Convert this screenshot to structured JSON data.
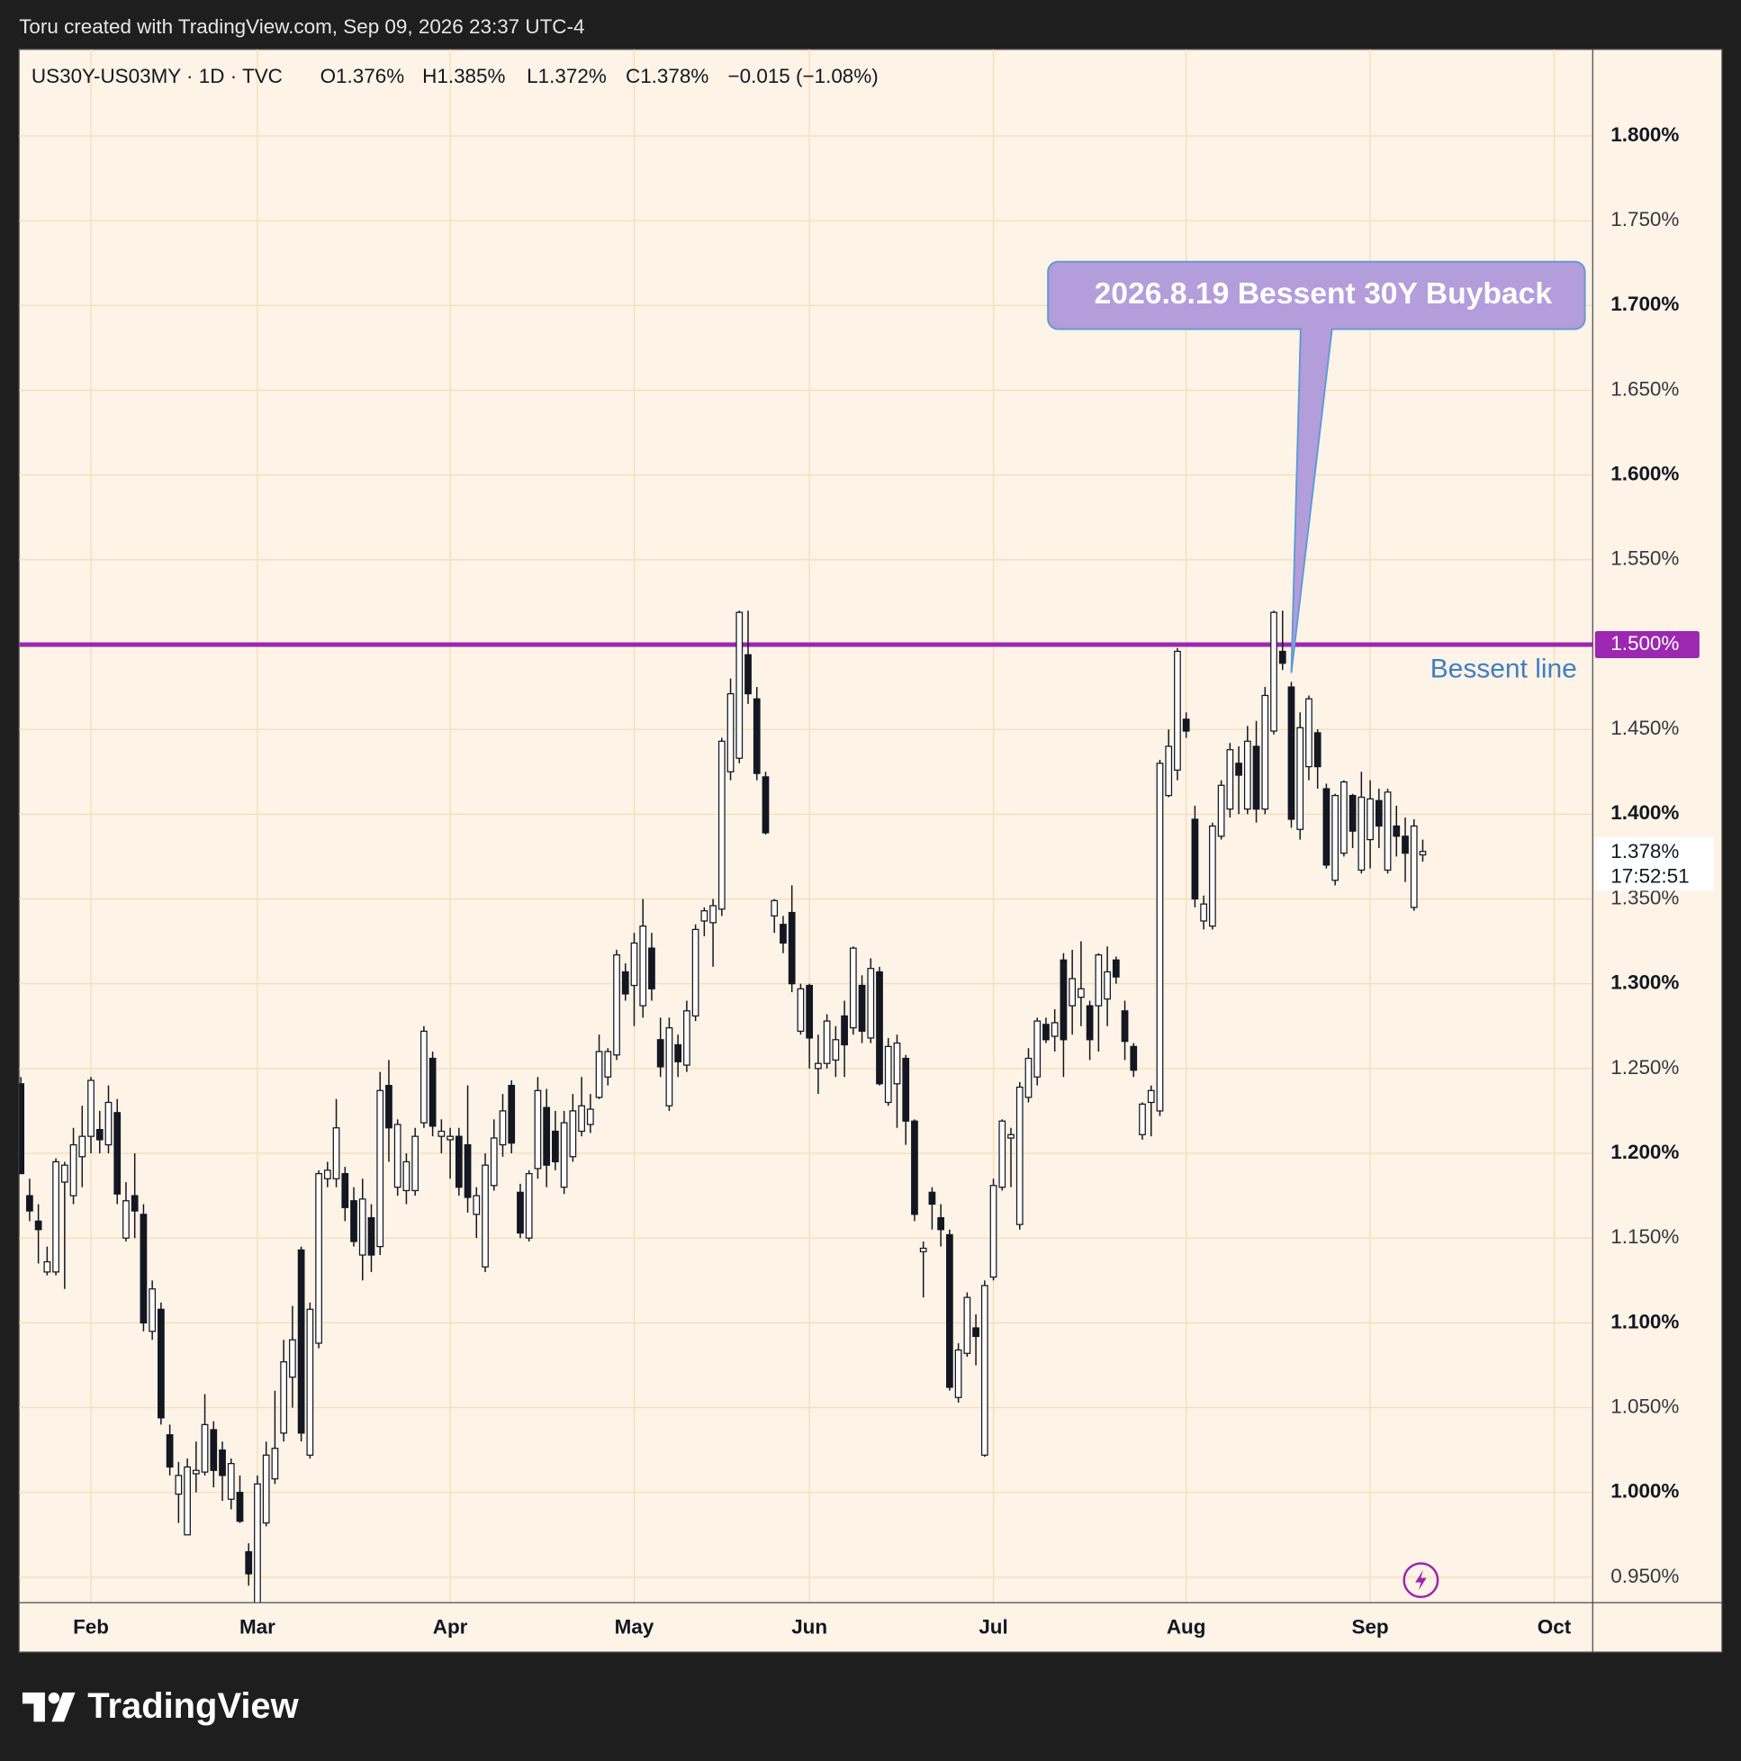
{
  "header": {
    "credit": "Toru created with TradingView.com, Sep 09, 2026 23:37 UTC-4"
  },
  "footer": {
    "brand": "TradingView"
  },
  "chart_data": {
    "type": "candlestick",
    "title": "US30Y-US03MY · 1D · TVC",
    "legend_values": [
      "O1.376%",
      "H1.385%",
      "L1.372%",
      "C1.378%",
      "−0.015 (−1.08%)"
    ],
    "open": [
      1.241,
      1.175,
      1.16,
      1.13,
      1.13,
      1.183,
      1.175,
      1.198,
      1.21,
      1.214,
      1.205,
      1.224,
      1.15,
      1.175,
      1.164,
      1.095,
      1.108,
      1.034,
      0.999,
      0.975,
      1.011,
      1.012,
      1.037,
      1.025,
      0.996,
      1.0,
      0.965,
      0.932,
      0.982,
      1.008,
      1.035,
      1.068,
      1.143,
      1.022,
      1.088,
      1.185,
      1.185,
      1.188,
      1.172,
      1.14,
      1.162,
      1.145,
      1.24,
      1.18,
      1.178,
      1.178,
      1.218,
      1.256,
      1.21,
      1.208,
      1.21,
      1.205,
      1.164,
      1.133,
      1.181,
      1.205,
      1.24,
      1.177,
      1.15,
      1.191,
      1.227,
      1.213,
      1.18,
      1.198,
      1.213,
      1.217,
      1.233,
      1.245,
      1.258,
      1.307,
      1.299,
      1.287,
      1.321,
      1.267,
      1.228,
      1.264,
      1.252,
      1.281,
      1.337,
      1.336,
      1.344,
      1.425,
      1.433,
      1.494,
      1.468,
      1.422,
      1.34,
      1.335,
      1.342,
      1.272,
      1.299,
      1.25,
      1.253,
      1.255,
      1.281,
      1.274,
      1.299,
      1.268,
      1.307,
      1.23,
      1.241,
      1.256,
      1.219,
      1.142,
      1.177,
      1.162,
      1.152,
      1.056,
      1.082,
      1.097,
      1.022,
      1.127,
      1.18,
      1.209,
      1.158,
      1.233,
      1.245,
      1.276,
      1.269,
      1.314,
      1.287,
      1.292,
      1.287,
      1.287,
      1.291,
      1.314,
      1.284,
      1.263,
      1.211,
      1.23,
      1.225,
      1.411,
      1.426,
      1.456,
      1.397,
      1.337,
      1.334,
      1.387,
      1.403,
      1.43,
      1.403,
      1.44,
      1.403,
      1.449,
      1.496,
      1.475,
      1.391,
      1.428,
      1.448,
      1.415,
      1.361,
      1.377,
      1.411,
      1.367,
      1.385,
      1.408,
      1.367,
      1.393,
      1.387,
      1.345,
      1.376
    ],
    "high": [
      1.245,
      1.185,
      1.17,
      1.145,
      1.197,
      1.195,
      1.215,
      1.228,
      1.245,
      1.225,
      1.24,
      1.232,
      1.183,
      1.2,
      1.17,
      1.125,
      1.112,
      1.04,
      1.018,
      1.02,
      1.03,
      1.058,
      1.042,
      1.03,
      1.02,
      1.01,
      0.97,
      1.01,
      1.03,
      1.06,
      1.09,
      1.11,
      1.145,
      1.112,
      1.19,
      1.195,
      1.232,
      1.192,
      1.18,
      1.185,
      1.17,
      1.248,
      1.255,
      1.22,
      1.2,
      1.215,
      1.275,
      1.26,
      1.22,
      1.215,
      1.215,
      1.24,
      1.18,
      1.2,
      1.22,
      1.235,
      1.243,
      1.182,
      1.19,
      1.245,
      1.238,
      1.225,
      1.225,
      1.235,
      1.245,
      1.235,
      1.27,
      1.262,
      1.32,
      1.312,
      1.33,
      1.35,
      1.33,
      1.28,
      1.28,
      1.27,
      1.29,
      1.335,
      1.345,
      1.35,
      1.445,
      1.48,
      1.52,
      1.52,
      1.475,
      1.425,
      1.35,
      1.34,
      1.358,
      1.3,
      1.3,
      1.27,
      1.282,
      1.275,
      1.29,
      1.322,
      1.305,
      1.315,
      1.31,
      1.268,
      1.27,
      1.258,
      1.22,
      1.148,
      1.18,
      1.17,
      1.155,
      1.088,
      1.118,
      1.105,
      1.125,
      1.185,
      1.22,
      1.215,
      1.242,
      1.262,
      1.28,
      1.28,
      1.285,
      1.318,
      1.32,
      1.325,
      1.29,
      1.318,
      1.322,
      1.316,
      1.29,
      1.265,
      1.23,
      1.24,
      1.432,
      1.45,
      1.498,
      1.46,
      1.405,
      1.352,
      1.395,
      1.42,
      1.442,
      1.44,
      1.452,
      1.455,
      1.475,
      1.52,
      1.52,
      1.478,
      1.46,
      1.47,
      1.45,
      1.418,
      1.412,
      1.42,
      1.412,
      1.425,
      1.42,
      1.415,
      1.415,
      1.405,
      1.398,
      1.397,
      1.385
    ],
    "low": [
      1.188,
      1.16,
      1.135,
      1.128,
      1.128,
      1.12,
      1.17,
      1.18,
      1.2,
      1.2,
      1.2,
      1.17,
      1.148,
      1.15,
      1.095,
      1.09,
      1.04,
      1.01,
      0.982,
      0.975,
      1.0,
      1.01,
      1.003,
      0.995,
      0.99,
      0.982,
      0.945,
      0.925,
      0.98,
      1.005,
      1.03,
      1.05,
      1.03,
      1.02,
      1.085,
      1.18,
      1.18,
      1.16,
      1.145,
      1.125,
      1.13,
      1.14,
      1.195,
      1.175,
      1.17,
      1.175,
      1.215,
      1.21,
      1.2,
      1.185,
      1.175,
      1.165,
      1.15,
      1.13,
      1.178,
      1.198,
      1.2,
      1.15,
      1.148,
      1.185,
      1.18,
      1.19,
      1.176,
      1.195,
      1.21,
      1.212,
      1.232,
      1.24,
      1.255,
      1.29,
      1.275,
      1.28,
      1.29,
      1.245,
      1.225,
      1.245,
      1.248,
      1.278,
      1.328,
      1.31,
      1.34,
      1.42,
      1.43,
      1.465,
      1.42,
      1.388,
      1.33,
      1.318,
      1.295,
      1.27,
      1.25,
      1.235,
      1.25,
      1.245,
      1.245,
      1.27,
      1.265,
      1.265,
      1.24,
      1.228,
      1.215,
      1.205,
      1.16,
      1.115,
      1.155,
      1.145,
      1.06,
      1.053,
      1.08,
      1.075,
      1.021,
      1.125,
      1.178,
      1.18,
      1.155,
      1.23,
      1.24,
      1.265,
      1.26,
      1.245,
      1.27,
      1.275,
      1.255,
      1.26,
      1.275,
      1.3,
      1.255,
      1.245,
      1.208,
      1.21,
      1.222,
      1.41,
      1.42,
      1.445,
      1.345,
      1.332,
      1.332,
      1.385,
      1.398,
      1.4,
      1.4,
      1.395,
      1.4,
      1.447,
      1.485,
      1.392,
      1.385,
      1.42,
      1.415,
      1.368,
      1.358,
      1.375,
      1.38,
      1.365,
      1.368,
      1.38,
      1.365,
      1.375,
      1.36,
      1.343,
      1.372
    ],
    "close": [
      1.188,
      1.166,
      1.155,
      1.136,
      1.195,
      1.193,
      1.205,
      1.21,
      1.243,
      1.208,
      1.23,
      1.176,
      1.172,
      1.166,
      1.1,
      1.12,
      1.044,
      1.015,
      1.01,
      1.015,
      1.013,
      1.04,
      1.013,
      1.01,
      1.017,
      0.983,
      0.952,
      1.005,
      1.022,
      1.026,
      1.077,
      1.09,
      1.035,
      1.108,
      1.188,
      1.19,
      1.215,
      1.168,
      1.148,
      1.173,
      1.14,
      1.237,
      1.215,
      1.217,
      1.195,
      1.21,
      1.272,
      1.216,
      1.213,
      1.21,
      1.18,
      1.174,
      1.175,
      1.193,
      1.209,
      1.225,
      1.206,
      1.153,
      1.188,
      1.237,
      1.193,
      1.195,
      1.218,
      1.225,
      1.228,
      1.226,
      1.26,
      1.26,
      1.317,
      1.294,
      1.324,
      1.334,
      1.297,
      1.251,
      1.274,
      1.254,
      1.284,
      1.332,
      1.343,
      1.346,
      1.443,
      1.471,
      1.519,
      1.471,
      1.424,
      1.389,
      1.349,
      1.324,
      1.3,
      1.297,
      1.268,
      1.253,
      1.278,
      1.267,
      1.264,
      1.321,
      1.272,
      1.309,
      1.241,
      1.263,
      1.265,
      1.219,
      1.164,
      1.144,
      1.17,
      1.155,
      1.062,
      1.084,
      1.115,
      1.092,
      1.122,
      1.181,
      1.219,
      1.211,
      1.239,
      1.256,
      1.278,
      1.267,
      1.277,
      1.267,
      1.303,
      1.297,
      1.267,
      1.317,
      1.307,
      1.304,
      1.266,
      1.249,
      1.229,
      1.237,
      1.43,
      1.44,
      1.496,
      1.449,
      1.35,
      1.347,
      1.393,
      1.417,
      1.438,
      1.423,
      1.443,
      1.403,
      1.47,
      1.519,
      1.489,
      1.397,
      1.451,
      1.468,
      1.428,
      1.37,
      1.411,
      1.419,
      1.39,
      1.41,
      1.409,
      1.393,
      1.413,
      1.387,
      1.377,
      1.393,
      1.378
    ],
    "up_color": "#ffffff",
    "down_color": "#131722",
    "xlim": [
      -0.2,
      179.4
    ],
    "xticks": [
      {
        "value": 8,
        "label": "Feb"
      },
      {
        "value": 27,
        "label": "Mar"
      },
      {
        "value": 49,
        "label": "Apr"
      },
      {
        "value": 70,
        "label": "May"
      },
      {
        "value": 90,
        "label": "Jun"
      },
      {
        "value": 111,
        "label": "Jul"
      },
      {
        "value": 133,
        "label": "Aug"
      },
      {
        "value": 154,
        "label": "Sep"
      },
      {
        "value": 175,
        "label": "Oct"
      }
    ],
    "ylim": [
      0.935,
      1.851
    ],
    "yticks": [
      {
        "value": 0.95,
        "label": "0.950%"
      },
      {
        "value": 1.0,
        "label": "1.000%"
      },
      {
        "value": 1.05,
        "label": "1.050%"
      },
      {
        "value": 1.1,
        "label": "1.100%"
      },
      {
        "value": 1.15,
        "label": "1.150%"
      },
      {
        "value": 1.2,
        "label": "1.200%"
      },
      {
        "value": 1.25,
        "label": "1.250%"
      },
      {
        "value": 1.3,
        "label": "1.300%"
      },
      {
        "value": 1.35,
        "label": "1.350%"
      },
      {
        "value": 1.4,
        "label": "1.400%"
      },
      {
        "value": 1.45,
        "label": "1.450%"
      },
      {
        "value": 1.5,
        "label": "1.500%"
      },
      {
        "value": 1.55,
        "label": "1.550%"
      },
      {
        "value": 1.6,
        "label": "1.600%"
      },
      {
        "value": 1.65,
        "label": "1.650%"
      },
      {
        "value": 1.7,
        "label": "1.700%"
      },
      {
        "value": 1.75,
        "label": "1.750%"
      },
      {
        "value": 1.8,
        "label": "1.800%"
      }
    ],
    "grid": true,
    "hline": {
      "value": 1.5,
      "label": "Bessent line",
      "axis_label": "1.500%",
      "color": "#9c27b0"
    },
    "last_price": {
      "value": 1.378,
      "label": "1.378%",
      "countdown": "17:52:51"
    },
    "annotation": {
      "text": "2026.8.19 Bessent 30Y Buyback"
    }
  }
}
